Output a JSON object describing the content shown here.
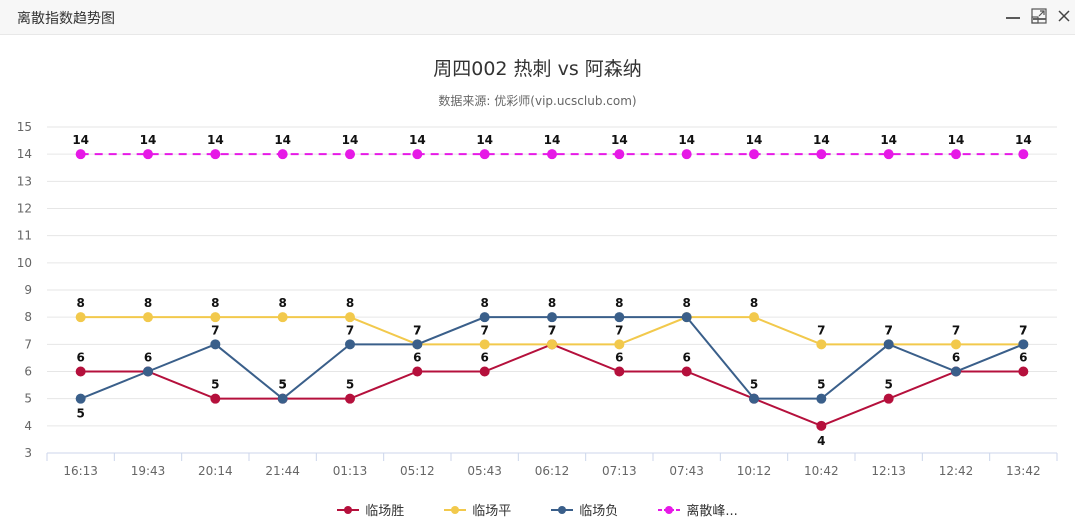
{
  "window": {
    "title": "离散指数趋势图",
    "minimize_icon": "minimize-icon",
    "maximize_icon": "maximize-icon",
    "close_icon": "close-icon"
  },
  "chart": {
    "title": "周四002 热刺 vs 阿森纳",
    "subtitle": "数据来源: 优彩师(vip.ucsclub.com)"
  },
  "legend": [
    {
      "label": "临场胜",
      "color": "#b5103c"
    },
    {
      "label": "临场平",
      "color": "#f2c94c"
    },
    {
      "label": "临场负",
      "color": "#3a5f8a"
    },
    {
      "label": "离散峰...",
      "color": "#e619e6"
    }
  ],
  "chart_data": {
    "type": "line",
    "title": "周四002 热刺 vs 阿森纳",
    "subtitle": "数据来源: 优彩师(vip.ucsclub.com)",
    "xlabel": "",
    "ylabel": "",
    "ylim": [
      3,
      15
    ],
    "yticks": [
      3,
      4,
      5,
      6,
      7,
      8,
      9,
      10,
      11,
      12,
      13,
      14,
      15
    ],
    "grid": true,
    "legend_position": "bottom",
    "categories": [
      "16:13",
      "19:43",
      "20:14",
      "21:44",
      "01:13",
      "05:12",
      "05:43",
      "06:12",
      "07:13",
      "07:43",
      "10:12",
      "10:42",
      "12:13",
      "12:42",
      "13:42"
    ],
    "series": [
      {
        "name": "临场胜",
        "color": "#b5103c",
        "dashed": false,
        "values": [
          6,
          6,
          5,
          5,
          5,
          6,
          6,
          7,
          6,
          6,
          5,
          4,
          5,
          6,
          6
        ]
      },
      {
        "name": "临场平",
        "color": "#f2c94c",
        "dashed": false,
        "values": [
          8,
          8,
          8,
          8,
          8,
          7,
          7,
          7,
          7,
          8,
          8,
          7,
          7,
          7,
          7
        ]
      },
      {
        "name": "临场负",
        "color": "#3a5f8a",
        "dashed": false,
        "values": [
          5,
          6,
          7,
          5,
          7,
          7,
          8,
          8,
          8,
          8,
          5,
          5,
          7,
          6,
          7
        ]
      },
      {
        "name": "离散峰值",
        "legend_label": "离散峰...",
        "color": "#e619e6",
        "dashed": true,
        "values": [
          14,
          14,
          14,
          14,
          14,
          14,
          14,
          14,
          14,
          14,
          14,
          14,
          14,
          14,
          14
        ]
      }
    ],
    "label_positions": {
      "临场胜": [
        "top",
        "top",
        "top",
        "top",
        "top",
        "top",
        "top",
        "top",
        "top",
        "top",
        "none",
        "bottom",
        "top",
        "top",
        "top"
      ],
      "临场平": [
        "top",
        "top",
        "top",
        "top",
        "top",
        "top",
        "top",
        "top",
        "top",
        "none",
        "top",
        "top",
        "top",
        "top",
        "top"
      ],
      "临场负": [
        "bottom",
        "none",
        "top",
        "top",
        "top",
        "top",
        "top",
        "top",
        "top",
        "top",
        "top",
        "top",
        "top",
        "none",
        "top"
      ],
      "离散峰值": [
        "top",
        "top",
        "top",
        "top",
        "top",
        "top",
        "top",
        "top",
        "top",
        "top",
        "top",
        "top",
        "top",
        "top",
        "top"
      ]
    }
  }
}
